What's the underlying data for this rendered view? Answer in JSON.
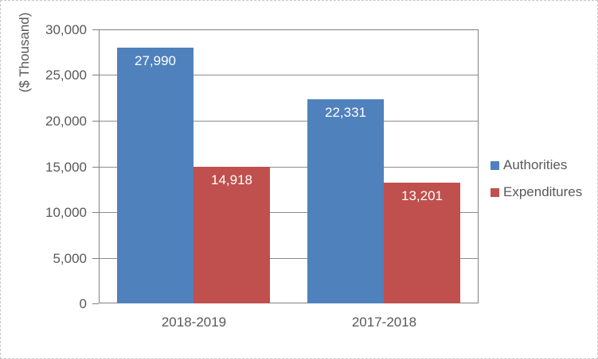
{
  "chart_data": {
    "type": "bar",
    "categories": [
      "2018-2019",
      "2017-2018"
    ],
    "series": [
      {
        "name": "Authorities",
        "color": "#4F81BD",
        "values": [
          27990,
          22331
        ],
        "data_labels": [
          "27,990",
          "22,331"
        ]
      },
      {
        "name": "Expenditures",
        "color": "#C0504D",
        "values": [
          14918,
          13201
        ],
        "data_labels": [
          "14,918",
          "13,201"
        ]
      }
    ],
    "title": "",
    "xlabel": "",
    "ylabel": "($ Thousand)",
    "ylim": [
      0,
      30000
    ],
    "ytick_interval": 5000,
    "ytick_labels": [
      "0",
      "5,000",
      "10,000",
      "15,000",
      "20,000",
      "25,000",
      "30,000"
    ],
    "grid": true,
    "legend_position": "right",
    "data_label_position": "inside-end",
    "colors": {
      "text": "#595959",
      "axis_line": "#808080",
      "gridline": "#8c8c8c",
      "data_label_text": "#ffffff"
    }
  }
}
